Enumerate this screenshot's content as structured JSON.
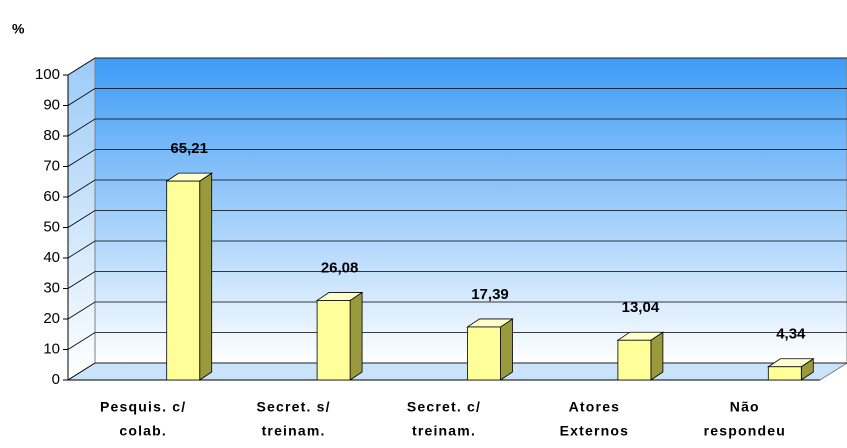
{
  "chart_data": {
    "type": "bar3d",
    "y_label": "%",
    "categories": [
      [
        "Pesquis. c/",
        "colab."
      ],
      [
        "Secret. s/",
        "treinam."
      ],
      [
        "Secret. c/",
        "treinam."
      ],
      [
        "Atores",
        "Externos"
      ],
      [
        "Não",
        "respondeu"
      ]
    ],
    "values": [
      65.21,
      26.08,
      17.39,
      13.04,
      4.34
    ],
    "value_labels": [
      "65,21",
      "26,08",
      "17,39",
      "13,04",
      "4,34"
    ],
    "color": "#ffff99",
    "ylim": [
      0,
      100
    ],
    "yticks": [
      0,
      10,
      20,
      30,
      40,
      50,
      60,
      70,
      80,
      90,
      100
    ],
    "grid": true
  }
}
